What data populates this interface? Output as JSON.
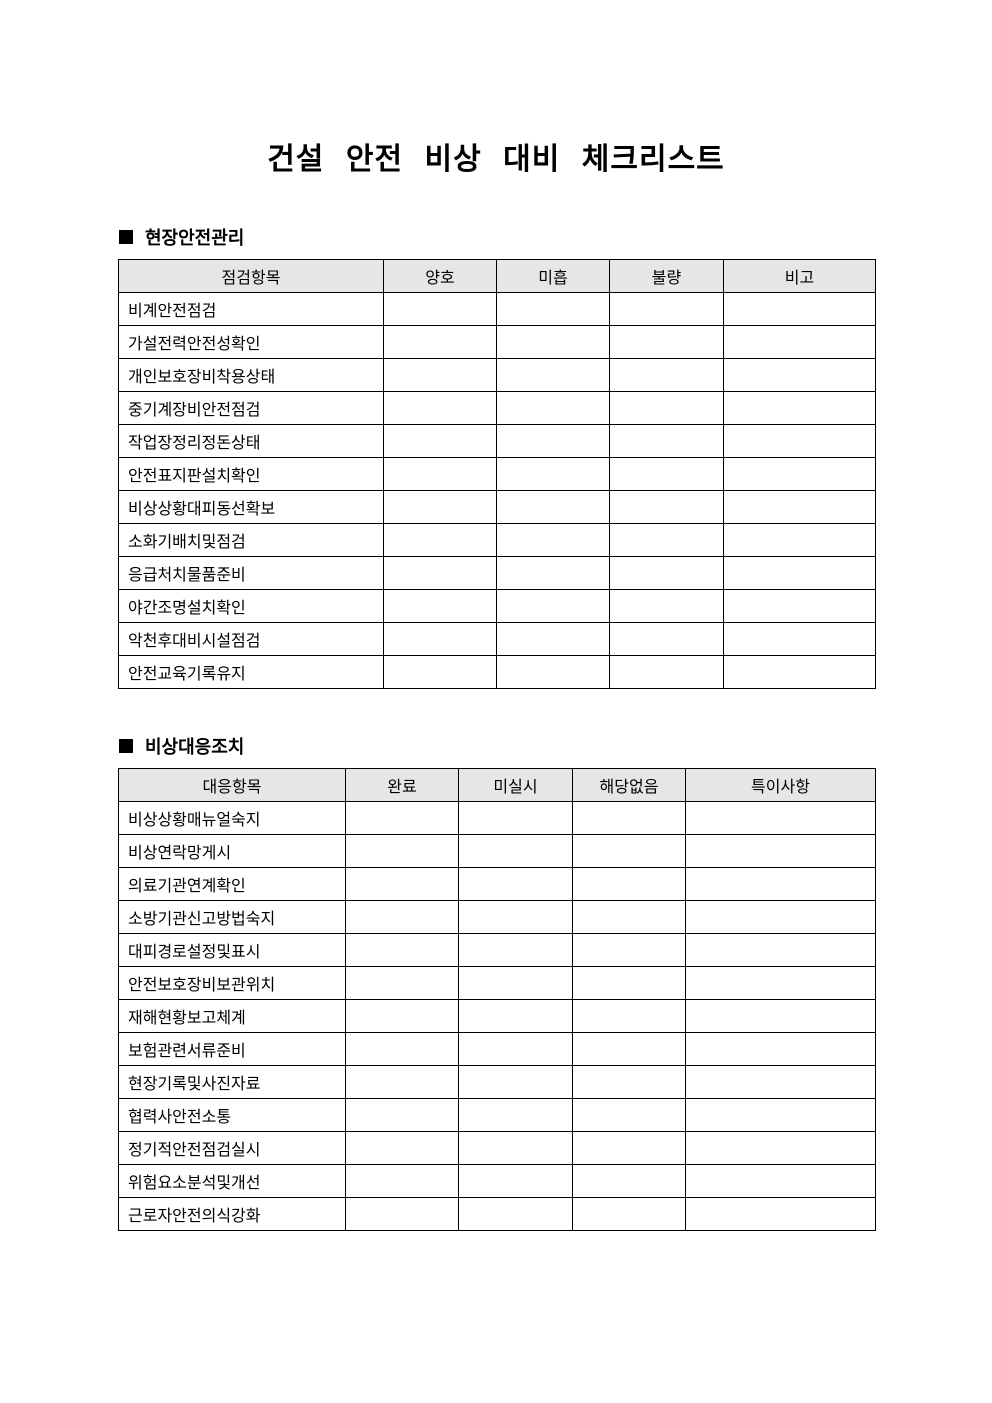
{
  "title": "건설 안전 비상 대비 체크리스트",
  "section1": {
    "heading": "현장안전관리",
    "headers": [
      "점검항목",
      "양호",
      "미흡",
      "불량",
      "비고"
    ],
    "items": [
      "비계안전점검",
      "가설전력안전성확인",
      "개인보호장비착용상태",
      "중기계장비안전점검",
      "작업장정리정돈상태",
      "안전표지판설치확인",
      "비상상황대피동선확보",
      "소화기배치및점검",
      "응급처치물품준비",
      "야간조명설치확인",
      "악천후대비시설점검",
      "안전교육기록유지"
    ]
  },
  "section2": {
    "heading": "비상대응조치",
    "headers": [
      "대응항목",
      "완료",
      "미실시",
      "해당없음",
      "특이사항"
    ],
    "items": [
      "비상상황매뉴얼숙지",
      "비상연락망게시",
      "의료기관연계확인",
      "소방기관신고방법숙지",
      "대피경로설정및표시",
      "안전보호장비보관위치",
      "재해현황보고체계",
      "보험관련서류준비",
      "현장기록및사진자료",
      "협력사안전소통",
      "정기적안전점검실시",
      "위험요소분석및개선",
      "근로자안전의식강화"
    ]
  }
}
